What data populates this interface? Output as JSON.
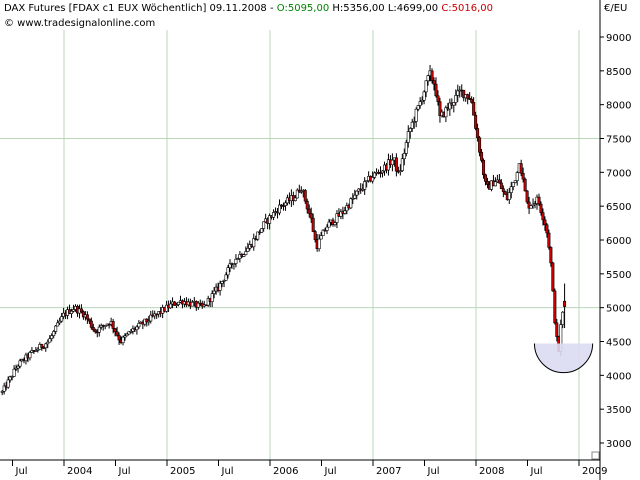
{
  "header": {
    "instrument": "DAX Futures [FDAX c1 EUX  Wöchentlich]",
    "date": "09.11.2008",
    "open": "O:5095,00",
    "high": "H:5356,00",
    "low": "L:4699,00",
    "close": "C:5016,00"
  },
  "source": "© www.tradesignalonline.com",
  "unit": "€/EU",
  "colors": {
    "up": "#ffffff",
    "down": "#cc0000",
    "grid": "#b8d8b8",
    "circle_fill": "#dcdcf2",
    "circle_stroke": "#000000"
  },
  "chart_data": {
    "type": "candlestick",
    "period": "weekly",
    "ylim": [
      2700,
      9300
    ],
    "y_ticks": [
      3000,
      3500,
      4000,
      4500,
      5000,
      5500,
      6000,
      6500,
      7000,
      7500,
      8000,
      8500,
      9000
    ],
    "y_tick_labels": [
      "3000",
      "3500",
      "4000",
      "4500",
      "5000",
      "5500",
      "6000",
      "6500",
      "7000",
      "7500",
      "8000",
      "8500",
      "9000"
    ],
    "x_labels": [
      {
        "label": "Jul",
        "date": 2003.5
      },
      {
        "label": "2004",
        "date": 2004.0
      },
      {
        "label": "Jul",
        "date": 2004.5
      },
      {
        "label": "2005",
        "date": 2005.0
      },
      {
        "label": "Jul",
        "date": 2005.5
      },
      {
        "label": "2006",
        "date": 2006.0
      },
      {
        "label": "Jul",
        "date": 2006.5
      },
      {
        "label": "2007",
        "date": 2007.0
      },
      {
        "label": "Jul",
        "date": 2007.5
      },
      {
        "label": "2008",
        "date": 2008.0
      },
      {
        "label": "Jul",
        "date": 2008.5
      },
      {
        "label": "2009",
        "date": 2009.0
      }
    ],
    "x_range": [
      2003.4,
      2009.3
    ],
    "vertical_grid_at": [
      2004.0,
      2005.0,
      2006.0,
      2007.0,
      2008.0,
      2009.0
    ],
    "horizontal_grid_at": [
      5000,
      7500
    ],
    "price_path": [
      [
        2003.4,
        3750
      ],
      [
        2003.55,
        4150
      ],
      [
        2003.7,
        4350
      ],
      [
        2003.85,
        4500
      ],
      [
        2004.0,
        4900
      ],
      [
        2004.1,
        5000
      ],
      [
        2004.2,
        4900
      ],
      [
        2004.3,
        4650
      ],
      [
        2004.45,
        4800
      ],
      [
        2004.55,
        4500
      ],
      [
        2004.65,
        4650
      ],
      [
        2004.8,
        4800
      ],
      [
        2004.95,
        4950
      ],
      [
        2005.05,
        5050
      ],
      [
        2005.15,
        5100
      ],
      [
        2005.25,
        5050
      ],
      [
        2005.35,
        5000
      ],
      [
        2005.5,
        5300
      ],
      [
        2005.65,
        5700
      ],
      [
        2005.8,
        5900
      ],
      [
        2005.95,
        6250
      ],
      [
        2006.1,
        6500
      ],
      [
        2006.25,
        6650
      ],
      [
        2006.3,
        6800
      ],
      [
        2006.4,
        6300
      ],
      [
        2006.45,
        5900
      ],
      [
        2006.55,
        6200
      ],
      [
        2006.7,
        6400
      ],
      [
        2006.85,
        6700
      ],
      [
        2007.0,
        6950
      ],
      [
        2007.1,
        7050
      ],
      [
        2007.2,
        7200
      ],
      [
        2007.25,
        6950
      ],
      [
        2007.35,
        7600
      ],
      [
        2007.45,
        8000
      ],
      [
        2007.55,
        8450
      ],
      [
        2007.6,
        8300
      ],
      [
        2007.65,
        7800
      ],
      [
        2007.75,
        8000
      ],
      [
        2007.85,
        8200
      ],
      [
        2007.95,
        8100
      ],
      [
        2008.05,
        7200
      ],
      [
        2008.1,
        6750
      ],
      [
        2008.2,
        6900
      ],
      [
        2008.3,
        6600
      ],
      [
        2008.4,
        7000
      ],
      [
        2008.42,
        7200
      ],
      [
        2008.5,
        6500
      ],
      [
        2008.6,
        6600
      ],
      [
        2008.68,
        6200
      ],
      [
        2008.72,
        5800
      ],
      [
        2008.76,
        4900
      ],
      [
        2008.8,
        4300
      ],
      [
        2008.83,
        4850
      ],
      [
        2008.86,
        5016
      ]
    ],
    "summary": {
      "open": 5095,
      "high": 5356,
      "low": 4699,
      "close": 5016
    },
    "annotation": {
      "type": "semicircle",
      "center": [
        2008.85,
        4470
      ],
      "radius_price": 430
    }
  }
}
